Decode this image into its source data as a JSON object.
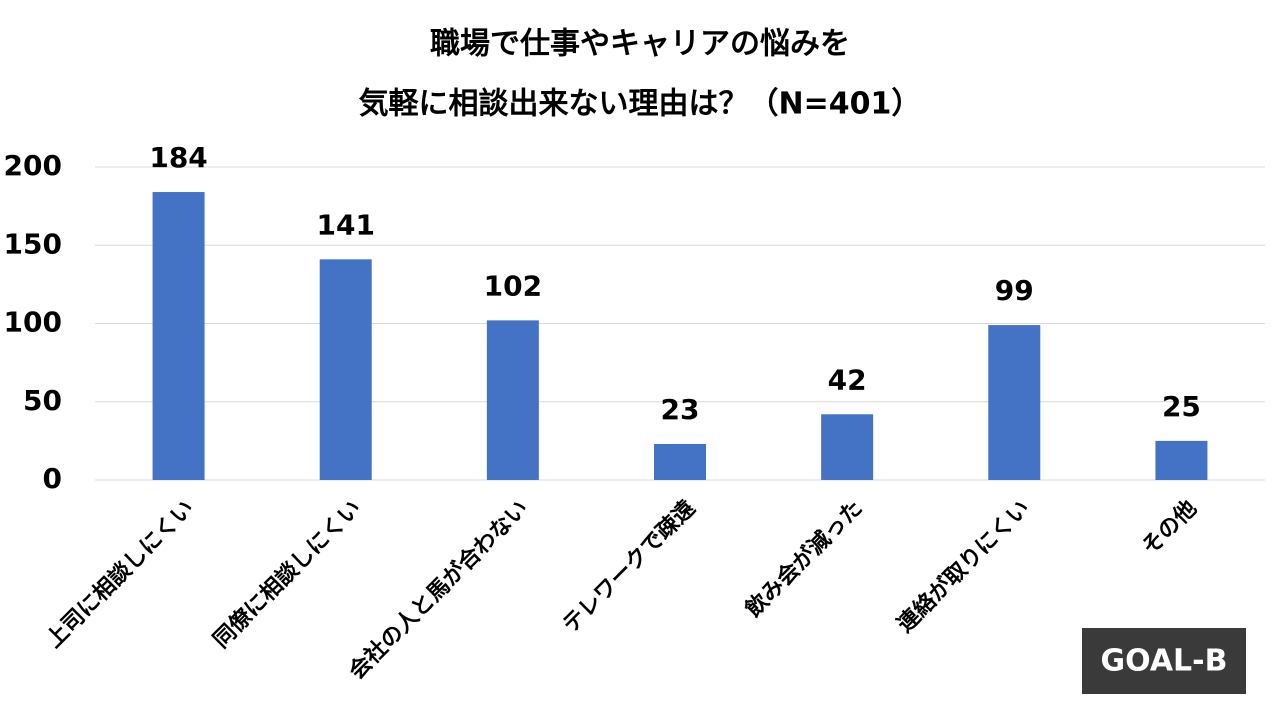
{
  "chart_data": {
    "type": "bar",
    "title": [
      "職場で仕事やキャリアの悩みを",
      "気軽に相談出来ない理由は？（N=401）"
    ],
    "categories": [
      "上司に相談しにくい",
      "同僚に相談しにくい",
      "会社の人と馬が合わない",
      "テレワークで疎遠",
      "飲み会が減った",
      "連絡が取りにくい",
      "その他"
    ],
    "values": [
      184,
      141,
      102,
      23,
      42,
      99,
      25
    ],
    "color": "#4472c4",
    "ylim": [
      0,
      200
    ],
    "yticks": [
      0,
      50,
      100,
      150,
      200
    ],
    "grid": true
  },
  "logo": "GOAL-B"
}
